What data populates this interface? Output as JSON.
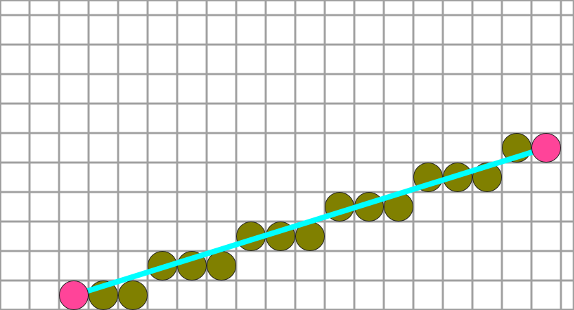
{
  "diagram": {
    "type": "grid-line-rasterization",
    "grid": {
      "columns": 19,
      "rows": 10,
      "line_color": "#a0a0a0",
      "background": "#ffffff"
    },
    "line": {
      "start_cell": {
        "col": 2,
        "row": 9
      },
      "end_cell": {
        "col": 18,
        "row": 4
      },
      "color": "#00ffff"
    },
    "endpoint_color": "#ff4499",
    "pixel_color": "#808000",
    "rasterized_cells": [
      {
        "col": 3,
        "row": 9
      },
      {
        "col": 4,
        "row": 9
      },
      {
        "col": 5,
        "row": 8
      },
      {
        "col": 6,
        "row": 8
      },
      {
        "col": 7,
        "row": 8
      },
      {
        "col": 8,
        "row": 7
      },
      {
        "col": 9,
        "row": 7
      },
      {
        "col": 10,
        "row": 7
      },
      {
        "col": 11,
        "row": 6
      },
      {
        "col": 12,
        "row": 6
      },
      {
        "col": 13,
        "row": 6
      },
      {
        "col": 14,
        "row": 5
      },
      {
        "col": 15,
        "row": 5
      },
      {
        "col": 16,
        "row": 5
      },
      {
        "col": 17,
        "row": 4
      }
    ]
  }
}
